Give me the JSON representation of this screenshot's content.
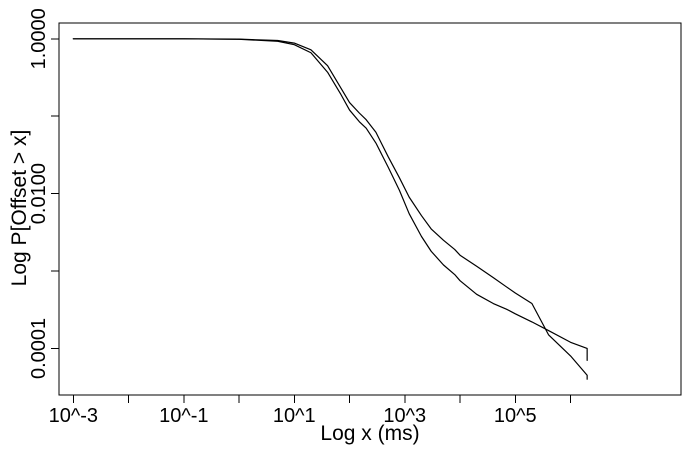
{
  "chart_data": {
    "type": "line",
    "xlabel": "Log x (ms)",
    "ylabel": "Log P[Offset > x]",
    "x_scale": "log",
    "y_scale": "log",
    "xlim": [
      0.00055,
      100000000
    ],
    "ylim": [
      2.5e-05,
      1.6
    ],
    "x_ticks": [
      {
        "value": 0.001,
        "label": "10^-3"
      },
      {
        "value": 0.01,
        "label": ""
      },
      {
        "value": 0.1,
        "label": "10^-1"
      },
      {
        "value": 1,
        "label": ""
      },
      {
        "value": 10,
        "label": "10^1"
      },
      {
        "value": 100,
        "label": ""
      },
      {
        "value": 1000,
        "label": "10^3"
      },
      {
        "value": 10000,
        "label": ""
      },
      {
        "value": 100000,
        "label": "10^5"
      },
      {
        "value": 1000000,
        "label": ""
      }
    ],
    "y_ticks": [
      {
        "value": 1,
        "label": "1.0000"
      },
      {
        "value": 0.1,
        "label": ""
      },
      {
        "value": 0.01,
        "label": "0.0100"
      },
      {
        "value": 0.001,
        "label": ""
      },
      {
        "value": 0.0001,
        "label": "0.0001"
      }
    ],
    "grid": false,
    "series": [
      {
        "points": [
          [
            0.001,
            1.0
          ],
          [
            0.1,
            1.0
          ],
          [
            1,
            0.99
          ],
          [
            5,
            0.95
          ],
          [
            10,
            0.88
          ],
          [
            20,
            0.72
          ],
          [
            40,
            0.45
          ],
          [
            70,
            0.23
          ],
          [
            100,
            0.15
          ],
          [
            150,
            0.11
          ],
          [
            200,
            0.09
          ],
          [
            300,
            0.062
          ],
          [
            500,
            0.03
          ],
          [
            800,
            0.016
          ],
          [
            1200,
            0.009
          ],
          [
            2000,
            0.0052
          ],
          [
            3000,
            0.0035
          ],
          [
            5000,
            0.0025
          ],
          [
            8000,
            0.0019
          ],
          [
            10000,
            0.0016
          ],
          [
            20000,
            0.00115
          ],
          [
            40000,
            0.00082
          ],
          [
            70000,
            0.00062
          ],
          [
            100000,
            0.00052
          ],
          [
            200000,
            0.00038
          ],
          [
            400000,
            0.00015
          ],
          [
            1000000,
            8e-05
          ],
          [
            2000000,
            4.5e-05
          ],
          [
            2000000,
            4e-05
          ]
        ]
      },
      {
        "points": [
          [
            0.001,
            1.0
          ],
          [
            0.1,
            1.0
          ],
          [
            1,
            0.985
          ],
          [
            5,
            0.93
          ],
          [
            10,
            0.84
          ],
          [
            20,
            0.66
          ],
          [
            40,
            0.37
          ],
          [
            70,
            0.19
          ],
          [
            100,
            0.12
          ],
          [
            150,
            0.085
          ],
          [
            200,
            0.07
          ],
          [
            300,
            0.045
          ],
          [
            500,
            0.022
          ],
          [
            800,
            0.011
          ],
          [
            1200,
            0.0055
          ],
          [
            2000,
            0.0028
          ],
          [
            3000,
            0.0018
          ],
          [
            5000,
            0.0012
          ],
          [
            8000,
            0.0009
          ],
          [
            10000,
            0.00075
          ],
          [
            20000,
            0.0005
          ],
          [
            40000,
            0.00038
          ],
          [
            70000,
            0.00032
          ],
          [
            100000,
            0.00028
          ],
          [
            200000,
            0.00022
          ],
          [
            400000,
            0.00017
          ],
          [
            1000000,
            0.00012
          ],
          [
            2000000,
            0.0001
          ],
          [
            2000000,
            7e-05
          ]
        ]
      }
    ]
  }
}
